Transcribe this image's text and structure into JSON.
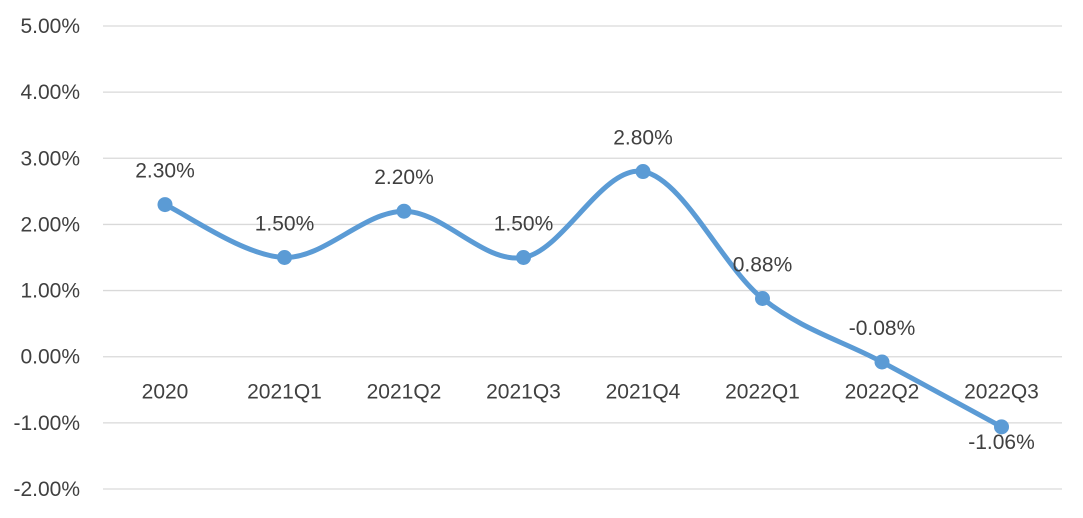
{
  "chart_data": {
    "type": "line",
    "smooth": true,
    "categories": [
      "2020",
      "2021Q1",
      "2021Q2",
      "2021Q3",
      "2021Q4",
      "2022Q1",
      "2022Q2",
      "2022Q3"
    ],
    "series": [
      {
        "values": [
          2.3,
          1.5,
          2.2,
          1.5,
          2.8,
          0.88,
          -0.08,
          -1.06
        ],
        "labels": [
          "2.30%",
          "1.50%",
          "2.20%",
          "1.50%",
          "2.80%",
          "0.88%",
          "-0.08%",
          "-1.06%"
        ],
        "color": "#5b9bd5"
      }
    ],
    "y_ticks": [
      "5.00%",
      "4.00%",
      "3.00%",
      "2.00%",
      "1.00%",
      "0.00%",
      "-1.00%",
      "-2.00%"
    ],
    "y_tick_values": [
      5,
      4,
      3,
      2,
      1,
      0,
      -1,
      -2
    ],
    "ylim": [
      -2,
      5
    ],
    "grid": true,
    "legend": "none",
    "title": "",
    "xlabel": "",
    "ylabel": ""
  }
}
